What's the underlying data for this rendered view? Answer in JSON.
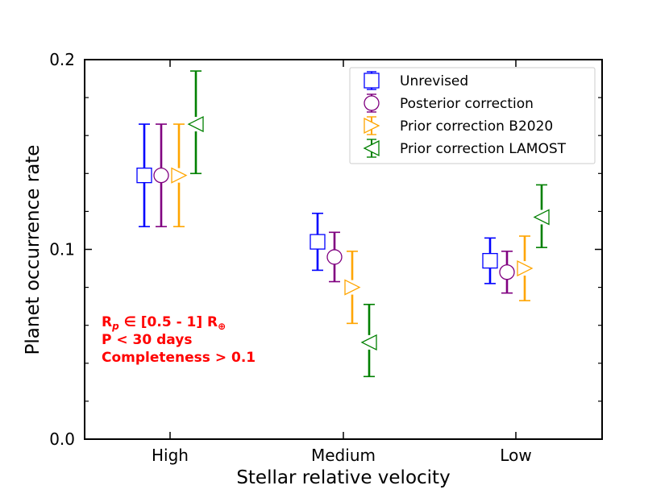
{
  "chart_data": {
    "type": "scatter",
    "xlabel": "Stellar relative velocity",
    "ylabel": "Planet occurrence rate",
    "categories": [
      "High",
      "Medium",
      "Low"
    ],
    "ylim": [
      0,
      0.2
    ],
    "yticks": [
      "0.0",
      "0.1",
      "0.2"
    ],
    "grid": false,
    "legend_position": "top-right",
    "series": [
      {
        "name": "Unrevised",
        "marker": "square",
        "color": "#0000ff",
        "values": [
          0.139,
          0.104,
          0.094
        ],
        "err_low": [
          0.112,
          0.089,
          0.082
        ],
        "err_high": [
          0.166,
          0.119,
          0.106
        ]
      },
      {
        "name": "Posterior correction",
        "marker": "circle",
        "color": "#800080",
        "values": [
          0.139,
          0.096,
          0.088
        ],
        "err_low": [
          0.112,
          0.083,
          0.077
        ],
        "err_high": [
          0.166,
          0.109,
          0.099
        ]
      },
      {
        "name": "Prior correction B2020",
        "marker": "triangle-right",
        "color": "#ffa500",
        "values": [
          0.139,
          0.08,
          0.09
        ],
        "err_low": [
          0.112,
          0.061,
          0.073
        ],
        "err_high": [
          0.166,
          0.099,
          0.107
        ]
      },
      {
        "name": "Prior correction LAMOST",
        "marker": "triangle-left",
        "color": "#008000",
        "values": [
          0.166,
          0.051,
          0.117
        ],
        "err_low": [
          0.14,
          0.033,
          0.101
        ],
        "err_high": [
          0.194,
          0.071,
          0.134
        ]
      }
    ],
    "annotation": {
      "color": "#ff0000",
      "lines": [
        {
          "parts": [
            "R",
            "p",
            " ∈ [0.5 - 1] R",
            "⊕"
          ]
        },
        {
          "parts": [
            "P < 30 days"
          ]
        },
        {
          "parts": [
            "Completeness > 0.1"
          ]
        }
      ]
    }
  }
}
